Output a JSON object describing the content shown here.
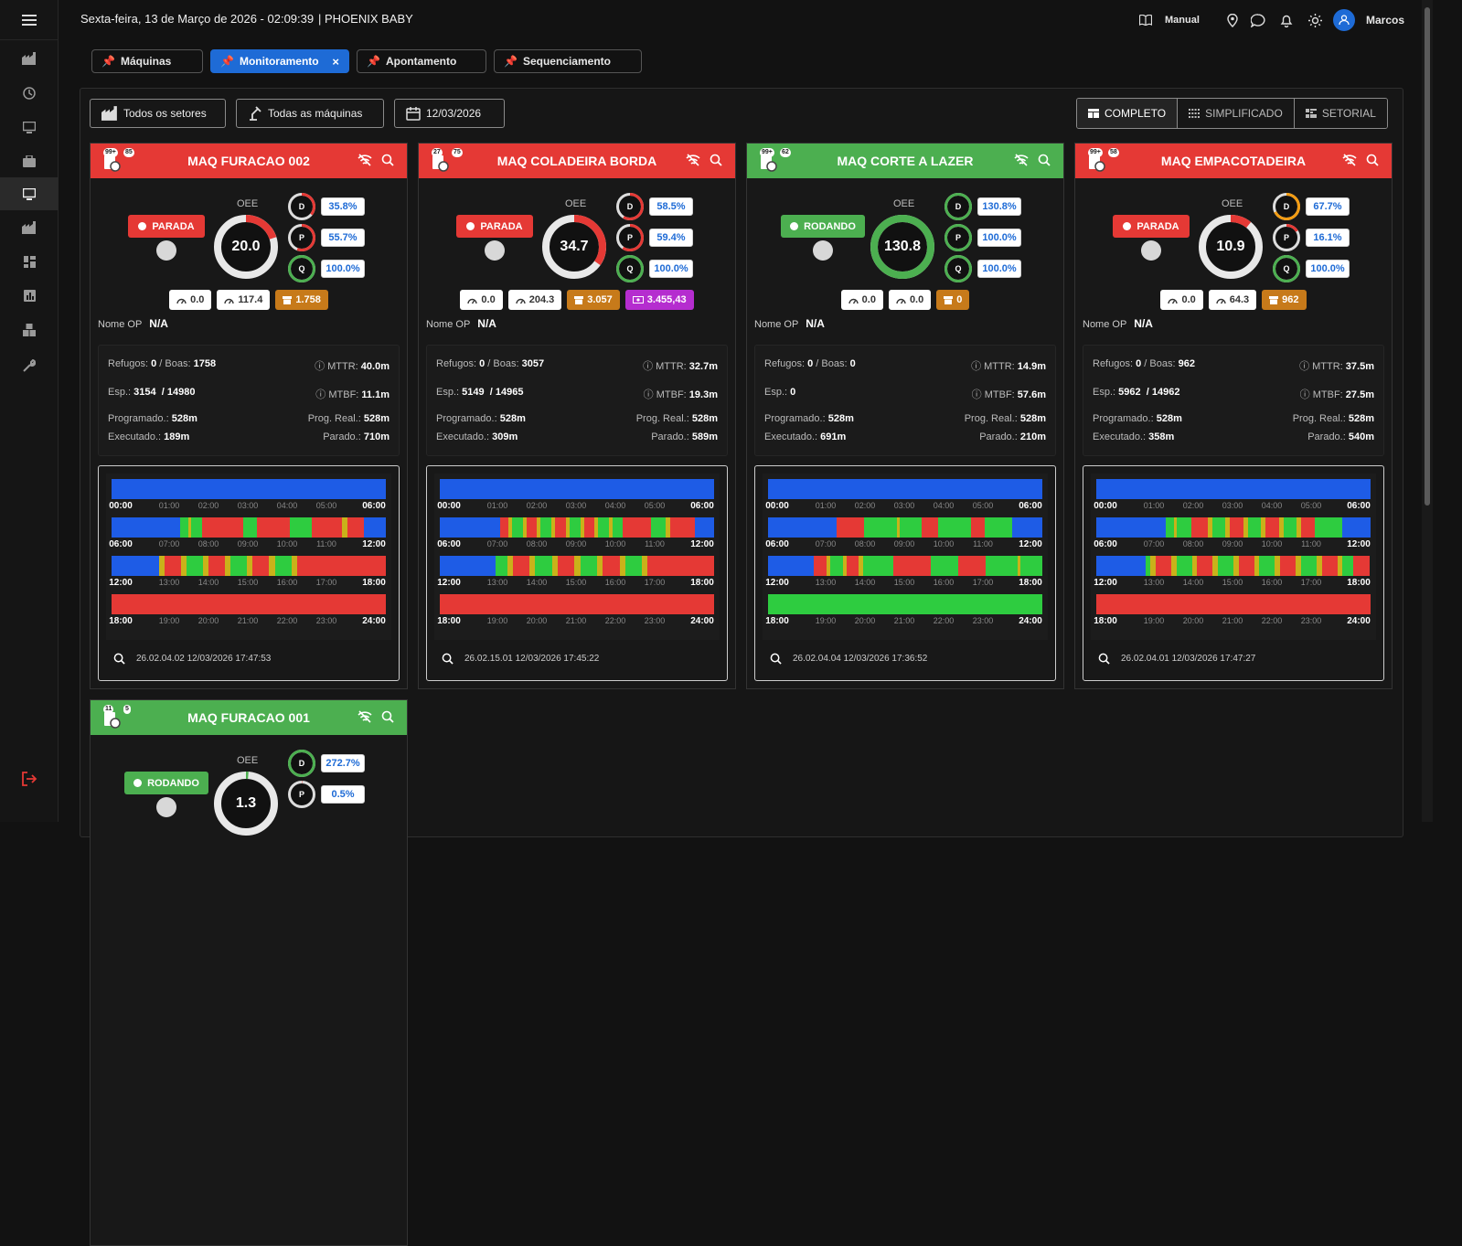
{
  "topbar": {
    "date": "Sexta-feira, 13 de Março de 2026 - 02:09:39",
    "company": "| PHOENIX BABY",
    "manual": "Manual",
    "user": "Marcos"
  },
  "tabs": [
    {
      "label": "Máquinas",
      "active": false
    },
    {
      "label": "Monitoramento",
      "active": true
    },
    {
      "label": "Apontamento",
      "active": false
    },
    {
      "label": "Sequenciamento",
      "active": false
    }
  ],
  "filters": {
    "sectors": "Todos os setores",
    "machines": "Todas as máquinas",
    "date": "12/03/2026"
  },
  "views": {
    "complete": "COMPLETO",
    "simple": "SIMPLIFICADO",
    "sector": "SETORIAL"
  },
  "labels": {
    "oee": "OEE",
    "nome_op": "Nome OP",
    "refugos": "Refugos:",
    "boas": "/ Boas:",
    "esp": "Esp.:",
    "programado": "Programado.:",
    "executado": "Executado.:",
    "mttr": "MTTR:",
    "mtbf": "MTBF:",
    "prog_real": "Prog. Real.:",
    "parado": "Parado.:",
    "d": "D",
    "p": "P",
    "q": "Q"
  },
  "colors": {
    "red": "#e53935",
    "green": "#4caf50",
    "blue": "#1e6bd6",
    "orange": "#c77a1a",
    "purple": "#b52dcf"
  },
  "machines": [
    {
      "name": "MAQ FURACAO 002",
      "badge1": "99+",
      "badge2": "85",
      "status": "PARADA",
      "oee": "20.0",
      "d": "35.8%",
      "p": "55.7%",
      "q": "100.0%",
      "c1": "0.0",
      "c2": "117.4",
      "c3": "1.758",
      "c4": "",
      "op": "N/A",
      "refugos": "0",
      "boas": "1758",
      "esp": "3154",
      "esp_total": "/ 14980",
      "mttr": "40.0m",
      "mtbf": "11.1m",
      "programado": "528m",
      "prog_real": "528m",
      "executado": "189m",
      "parado": "710m",
      "footer": "26.02.04.02 12/03/2026 17:47:53"
    },
    {
      "name": "MAQ COLADEIRA BORDA",
      "badge1": "27",
      "badge2": "75",
      "status": "PARADA",
      "oee": "34.7",
      "d": "58.5%",
      "p": "59.4%",
      "q": "100.0%",
      "c1": "0.0",
      "c2": "204.3",
      "c3": "3.057",
      "c4": "3.455,43",
      "op": "N/A",
      "refugos": "0",
      "boas": "3057",
      "esp": "5149",
      "esp_total": "/ 14965",
      "mttr": "32.7m",
      "mtbf": "19.3m",
      "programado": "528m",
      "prog_real": "528m",
      "executado": "309m",
      "parado": "589m",
      "footer": "26.02.15.01 12/03/2026 17:45:22"
    },
    {
      "name": "MAQ CORTE A LAZER",
      "badge1": "99+",
      "badge2": "62",
      "status": "RODANDO",
      "oee": "130.8",
      "d": "130.8%",
      "p": "100.0%",
      "q": "100.0%",
      "c1": "0.0",
      "c2": "0.0",
      "c3": "0",
      "c4": "",
      "op": "N/A",
      "refugos": "0",
      "boas": "0",
      "esp": "0",
      "esp_total": "",
      "mttr": "14.9m",
      "mtbf": "57.6m",
      "programado": "528m",
      "prog_real": "528m",
      "executado": "691m",
      "parado": "210m",
      "footer": "26.02.04.04 12/03/2026 17:36:52"
    },
    {
      "name": "MAQ EMPACOTADEIRA",
      "badge1": "99+",
      "badge2": "58",
      "status": "PARADA",
      "oee": "10.9",
      "d": "67.7%",
      "p": "16.1%",
      "q": "100.0%",
      "c1": "0.0",
      "c2": "64.3",
      "c3": "962",
      "c4": "",
      "op": "N/A",
      "refugos": "0",
      "boas": "962",
      "esp": "5962",
      "esp_total": "/ 14962",
      "mttr": "37.5m",
      "mtbf": "27.5m",
      "programado": "528m",
      "prog_real": "528m",
      "executado": "358m",
      "parado": "540m",
      "footer": "26.02.04.01 12/03/2026 17:47:27"
    },
    {
      "name": "MAQ FURACAO 001",
      "badge1": "11",
      "badge2": "5",
      "status": "RODANDO",
      "oee": "1.3",
      "d": "272.7%",
      "p": "0.5%"
    }
  ],
  "timeline_rows": [
    {
      "start": "00:00",
      "end": "06:00",
      "ticks": [
        "01:00",
        "02:00",
        "03:00",
        "04:00",
        "05:00"
      ]
    },
    {
      "start": "06:00",
      "end": "12:00",
      "ticks": [
        "07:00",
        "08:00",
        "09:00",
        "10:00",
        "11:00"
      ]
    },
    {
      "start": "12:00",
      "end": "18:00",
      "ticks": [
        "13:00",
        "14:00",
        "15:00",
        "16:00",
        "17:00"
      ]
    },
    {
      "start": "18:00",
      "end": "24:00",
      "ticks": [
        "19:00",
        "20:00",
        "21:00",
        "22:00",
        "23:00"
      ]
    }
  ]
}
